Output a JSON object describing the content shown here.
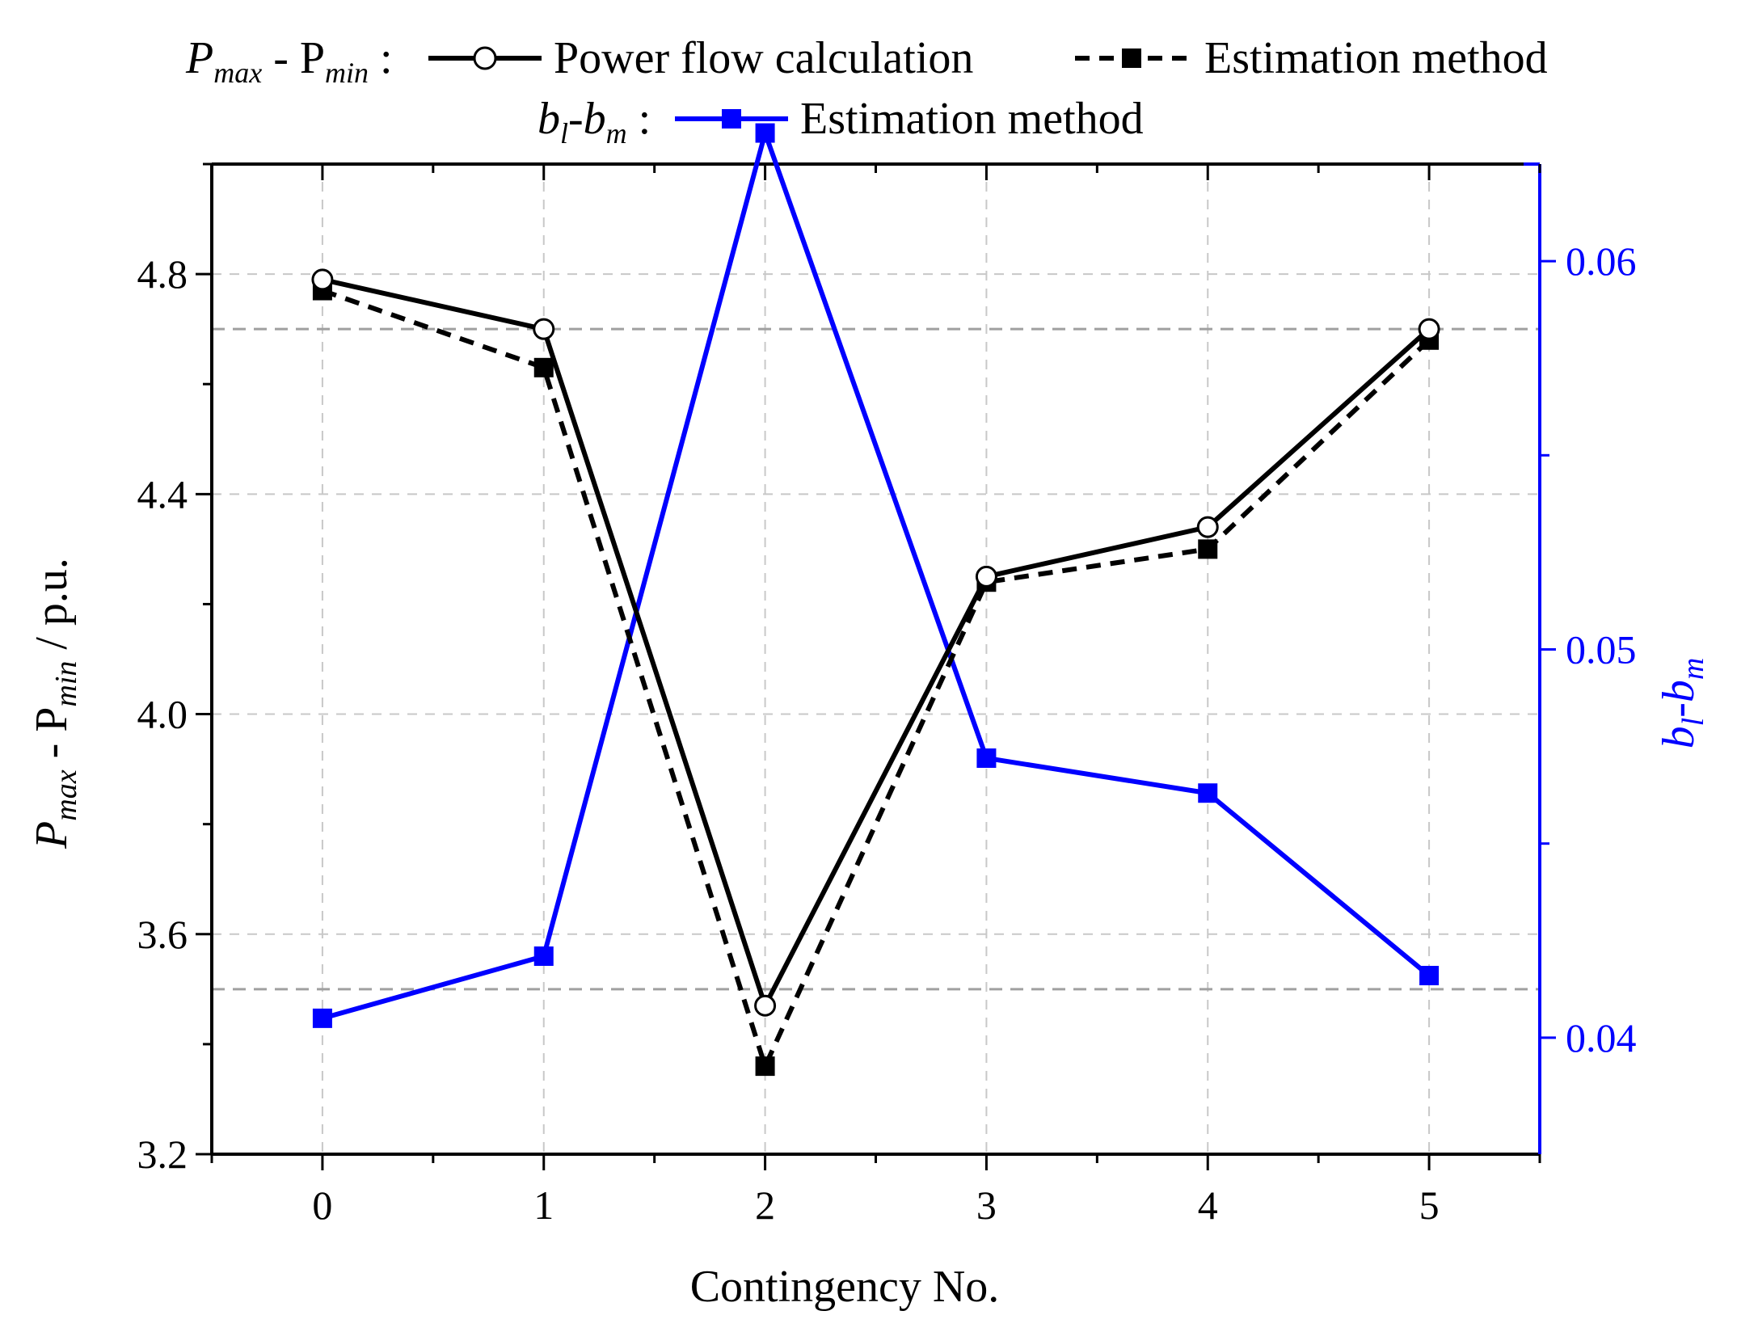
{
  "chart_data": {
    "type": "line",
    "x": [
      0,
      1,
      2,
      3,
      4,
      5
    ],
    "xlabel": "Contingency No.",
    "ylabel": {
      "main": "P",
      "sub1": "max",
      "mid": " - P",
      "sub2": "min",
      "tail": " / p.u."
    },
    "y2label": {
      "a": "b",
      "sub1": "l",
      "mid": "-b",
      "sub2": "m"
    },
    "xlim": [
      -0.5,
      5.5
    ],
    "ylim": [
      3.2,
      5.0
    ],
    "y2lim": [
      0.037,
      0.0625
    ],
    "xticks": [
      "0",
      "1",
      "2",
      "3",
      "4",
      "5"
    ],
    "yticks": [
      3.2,
      3.6,
      4.0,
      4.4,
      4.8
    ],
    "ytick_labels": [
      "3.2",
      "3.6",
      "4.0",
      "4.4",
      "4.8"
    ],
    "y2ticks": [
      0.04,
      0.05,
      0.06
    ],
    "y2tick_labels": [
      "0.04",
      "0.05",
      "0.06"
    ],
    "y2_minor_ticks": [
      0.045,
      0.055
    ],
    "reference_lines_y": [
      3.5,
      4.7
    ],
    "grid": true,
    "series": [
      {
        "name": "Power flow calculation",
        "group": "P_max - P_min",
        "axis": "left",
        "color": "#000000",
        "dash": "solid",
        "marker": "open-circle",
        "values": [
          4.79,
          4.7,
          3.47,
          4.25,
          4.34,
          4.7
        ]
      },
      {
        "name": "Estimation method",
        "group": "P_max - P_min",
        "axis": "left",
        "color": "#000000",
        "dash": "dashed",
        "marker": "filled-square",
        "values": [
          4.77,
          4.63,
          3.36,
          4.24,
          4.3,
          4.68
        ]
      },
      {
        "name": "Estimation method",
        "group": "b_l-b_m",
        "axis": "right",
        "color": "#0000ff",
        "dash": "solid",
        "marker": "filled-square",
        "values": [
          0.0405,
          0.0421,
          0.0633,
          0.0472,
          0.0463,
          0.0416
        ]
      }
    ],
    "legend": {
      "row1_label": {
        "main": "P",
        "sub1": "max",
        "mid": " - P",
        "sub2": "min",
        "colon": " :"
      },
      "row2_label": {
        "a": "b",
        "sub1": "l",
        "mid": "-b",
        "sub2": "m",
        "colon": " :"
      },
      "entries": [
        "Power flow calculation",
        "Estimation method",
        "Estimation method"
      ]
    },
    "colors": {
      "axis": "#000000",
      "secondary": "#0000ff",
      "grid": "#c8c8c8",
      "reference": "#a0a0a0"
    }
  }
}
